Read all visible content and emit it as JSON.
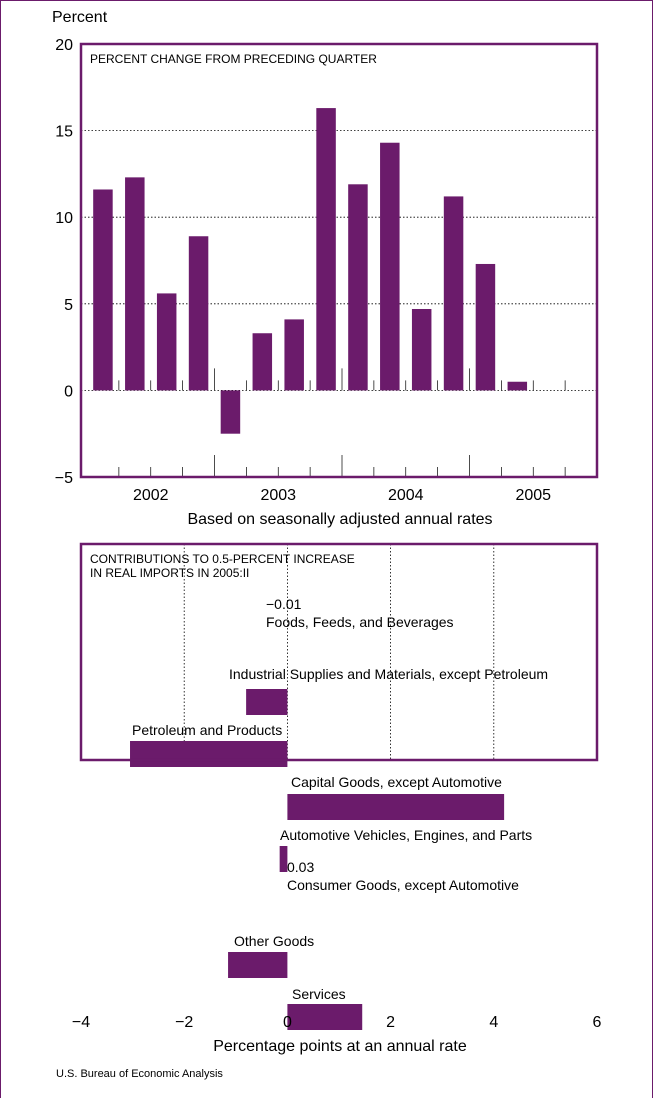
{
  "top_chart": {
    "y_unit_label": "Percent",
    "inner_title": "PERCENT CHANGE FROM PRECEDING QUARTER",
    "footnote": "Based on seasonally adjusted annual rates",
    "y_ticks": [
      "20",
      "15",
      "10",
      "5",
      "0",
      "−5"
    ],
    "year_labels": [
      "2002",
      "2003",
      "2004",
      "2005"
    ]
  },
  "bottom_chart": {
    "inner_title_line1": "CONTRIBUTIONS TO 0.5-PERCENT INCREASE",
    "inner_title_line2": "IN REAL IMPORTS IN 2005:II",
    "x_ticks": [
      "−4",
      "−2",
      "0",
      "2",
      "4",
      "6"
    ],
    "xlabel": "Percentage points at an annual rate"
  },
  "source": "U.S. Bureau of Economic Analysis",
  "colors": {
    "bar": "#6b1b6b",
    "frame": "#6b1b6b"
  },
  "chart_data": [
    {
      "type": "bar",
      "title": "PERCENT CHANGE FROM PRECEDING QUARTER",
      "ylabel": "Percent",
      "xlabel": "",
      "ylim": [
        -5,
        20
      ],
      "grid": true,
      "categories": [
        "2002:I",
        "2002:II",
        "2002:III",
        "2002:IV",
        "2003:I",
        "2003:II",
        "2003:III",
        "2003:IV",
        "2004:I",
        "2004:II",
        "2004:III",
        "2004:IV",
        "2005:I",
        "2005:II",
        "2005:III",
        "2005:IV"
      ],
      "values": [
        11.6,
        12.3,
        5.6,
        8.9,
        -2.5,
        3.3,
        4.1,
        16.3,
        11.9,
        14.3,
        4.7,
        11.2,
        7.3,
        0.5,
        null,
        null
      ]
    },
    {
      "type": "bar",
      "orientation": "horizontal",
      "title": "CONTRIBUTIONS TO 0.5-PERCENT INCREASE IN REAL IMPORTS IN 2005:II",
      "xlabel": "Percentage points at an annual rate",
      "xlim": [
        -4,
        6
      ],
      "grid": true,
      "categories": [
        "Foods, Feeds, and Beverages",
        "Industrial Supplies and Materials, except Petroleum",
        "Petroleum and Products",
        "Capital Goods, except Automotive",
        "Automotive Vehicles, Engines, and Parts",
        "Consumer Goods, except Automotive",
        "Other Goods",
        "Services"
      ],
      "values": [
        -0.01,
        -0.8,
        -3.05,
        4.2,
        -0.15,
        0.03,
        -1.15,
        1.45
      ],
      "data_labels": [
        "−0.01",
        "",
        "",
        "",
        "",
        "0.03",
        "",
        ""
      ]
    }
  ]
}
